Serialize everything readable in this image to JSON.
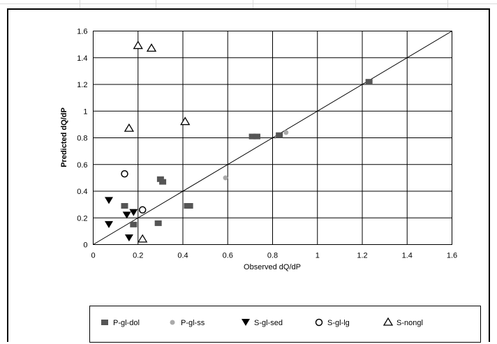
{
  "chart_data": {
    "type": "scatter",
    "title": "",
    "xlabel": "Observed dQ/dP",
    "ylabel": "Predicted dQ/dP",
    "xlim": [
      0,
      1.6
    ],
    "ylim": [
      0,
      1.6
    ],
    "xticks": [
      "0",
      "0.2",
      "0.4",
      "0.6",
      "0.8",
      "1",
      "1.2",
      "1.4",
      "1.6"
    ],
    "yticks": [
      "0",
      "0.2",
      "0.4",
      "0.6",
      "0.8",
      "1",
      "1.2",
      "1.4",
      "1.6"
    ],
    "grid": true,
    "legend_position": "bottom",
    "reference_line": {
      "x": [
        0,
        1.6
      ],
      "y": [
        0,
        1.6
      ]
    },
    "series": [
      {
        "name": "P-gl-dol",
        "marker": "square",
        "color": "#555555",
        "points": [
          [
            0.14,
            0.29
          ],
          [
            0.18,
            0.15
          ],
          [
            0.29,
            0.16
          ],
          [
            0.3,
            0.49
          ],
          [
            0.31,
            0.47
          ],
          [
            0.42,
            0.29
          ],
          [
            0.43,
            0.29
          ],
          [
            0.71,
            0.81
          ],
          [
            0.73,
            0.81
          ],
          [
            0.83,
            0.82
          ],
          [
            1.23,
            1.22
          ]
        ]
      },
      {
        "name": "P-gl-ss",
        "marker": "circle",
        "color": "#aaaaaa",
        "points": [
          [
            0.59,
            0.5
          ],
          [
            0.86,
            0.84
          ]
        ]
      },
      {
        "name": "S-gl-sed",
        "marker": "triangle-down",
        "color": "#000000",
        "points": [
          [
            0.07,
            0.33
          ],
          [
            0.07,
            0.15
          ],
          [
            0.15,
            0.22
          ],
          [
            0.16,
            0.05
          ],
          [
            0.18,
            0.24
          ]
        ]
      },
      {
        "name": "S-gl-lg",
        "marker": "circle-open",
        "color": "#000000",
        "points": [
          [
            0.14,
            0.53
          ],
          [
            0.22,
            0.26
          ]
        ]
      },
      {
        "name": "S-nongl",
        "marker": "triangle-open",
        "color": "#000000",
        "points": [
          [
            0.16,
            0.87
          ],
          [
            0.2,
            1.49
          ],
          [
            0.26,
            1.47
          ],
          [
            0.41,
            0.92
          ],
          [
            0.22,
            0.04
          ]
        ]
      }
    ]
  }
}
